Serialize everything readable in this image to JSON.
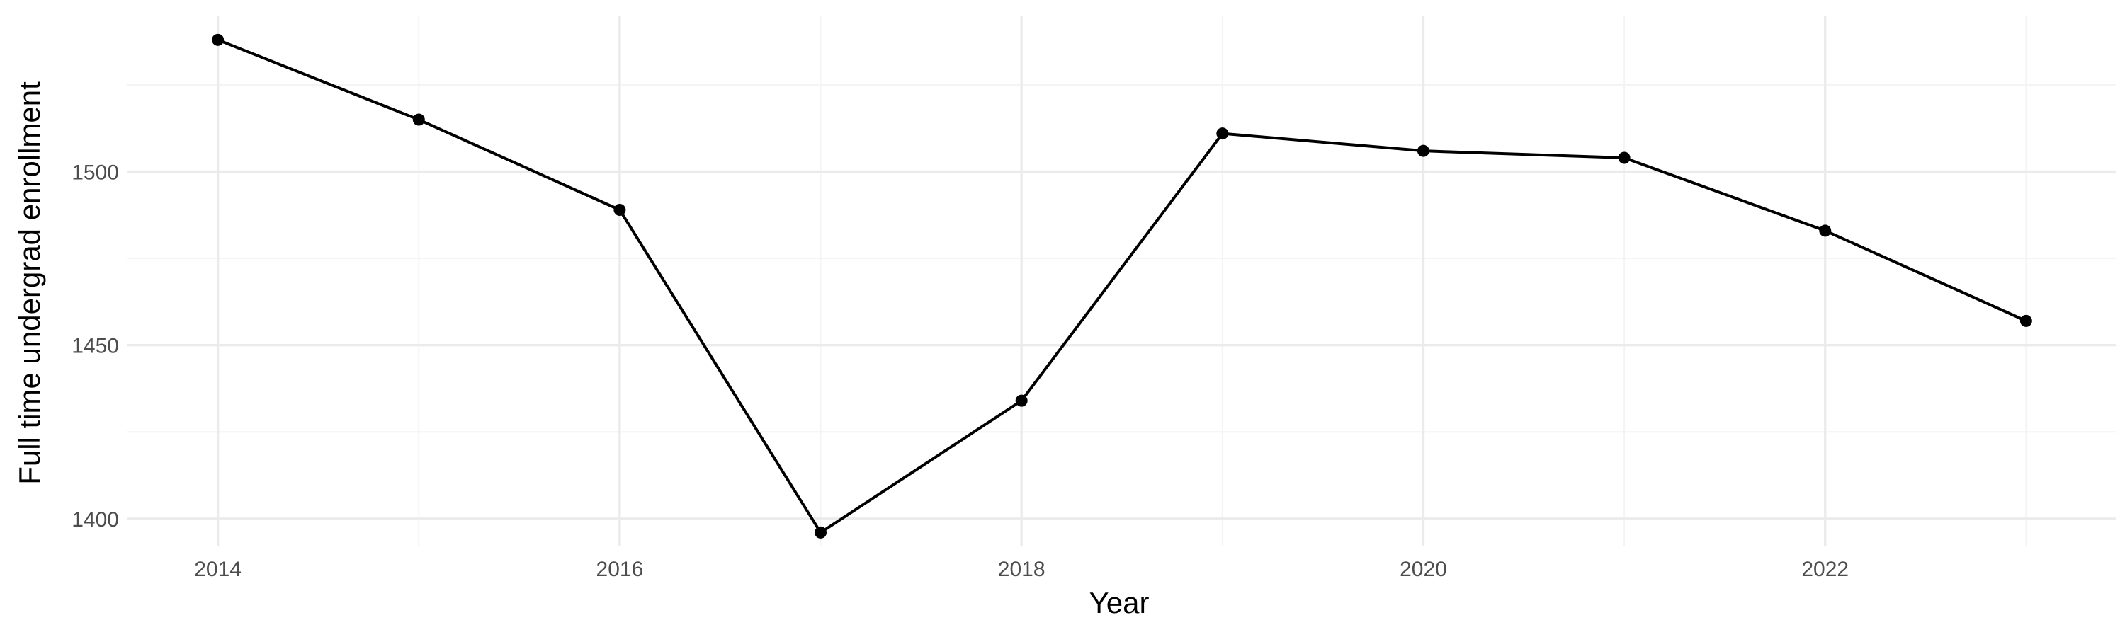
{
  "chart_data": {
    "type": "line",
    "xlabel": "Year",
    "ylabel": "Full time undergrad enrollment",
    "x": [
      2014,
      2015,
      2016,
      2017,
      2018,
      2019,
      2020,
      2021,
      2022,
      2023
    ],
    "series": [
      {
        "values": [
          1538,
          1515,
          1489,
          1396,
          1434,
          1511,
          1506,
          1504,
          1483,
          1457
        ]
      }
    ],
    "x_ticks": [
      "2014",
      "2016",
      "2018",
      "2020",
      "2022"
    ],
    "y_ticks": [
      "1400",
      "1450",
      "1500"
    ],
    "xlim": [
      2013.55,
      2023.45
    ],
    "ylim": [
      1392,
      1545
    ],
    "grid": true,
    "legend": "none",
    "line_color": "#000000",
    "point_color": "#000000",
    "grid_color": "#ebebeb"
  }
}
